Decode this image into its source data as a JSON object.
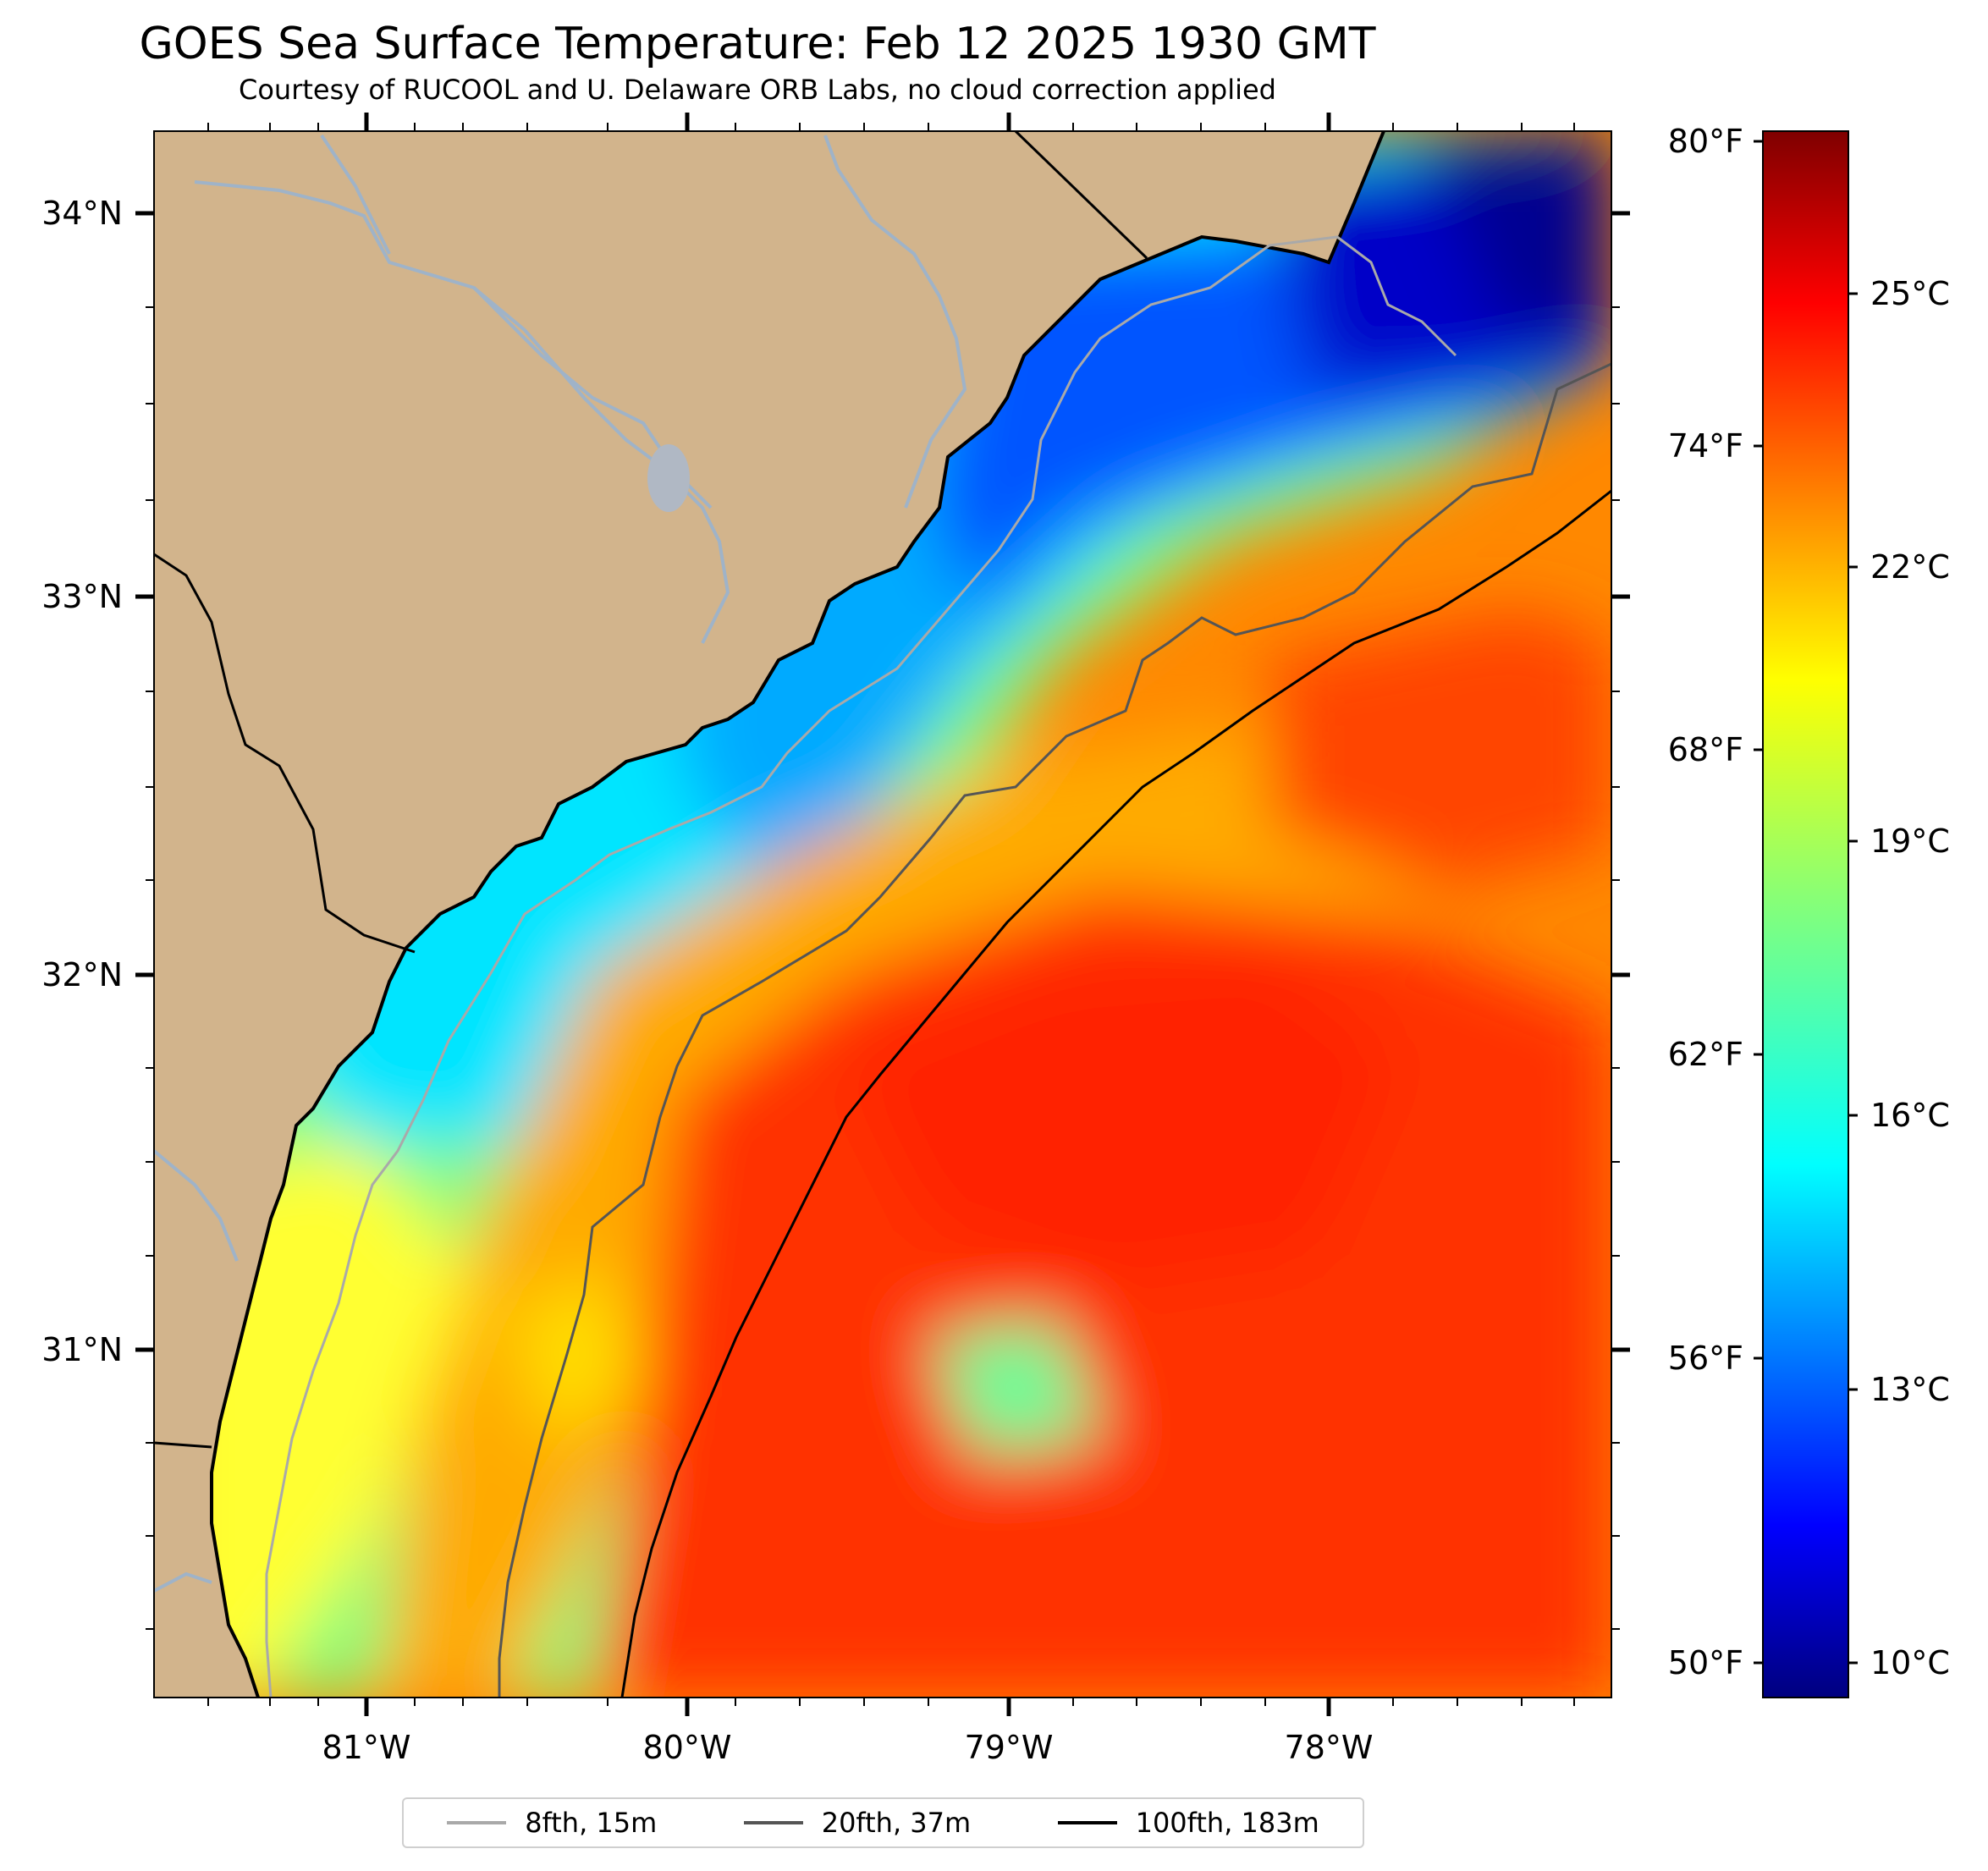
{
  "header": {
    "title": "GOES Sea Surface Temperature: Feb 12 2025 1930 GMT",
    "subtitle": "Courtesy of RUCOOL and U. Delaware ORB Labs, no cloud correction applied"
  },
  "map": {
    "land_color": "#d2b48c",
    "coast_color": "#000000",
    "river_color": "#9fb3c8",
    "lat_labels": [
      "34°N",
      "33°N",
      "32°N",
      "31°N"
    ],
    "lon_labels": [
      "81°W",
      "80°W",
      "79°W",
      "78°W"
    ]
  },
  "colorbar": {
    "fahrenheit_labels": [
      "80°F",
      "74°F",
      "68°F",
      "62°F",
      "56°F",
      "50°F"
    ],
    "celsius_labels": [
      "25°C",
      "22°C",
      "19°C",
      "16°C",
      "13°C",
      "10°C"
    ],
    "colormap": "jet",
    "range_c": [
      9.5,
      26.8
    ]
  },
  "legend": {
    "items": [
      {
        "label": "8fth, 15m",
        "color": "#a9a9a9"
      },
      {
        "label": "20fth, 37m",
        "color": "#555555"
      },
      {
        "label": "100fth, 183m",
        "color": "#000000"
      }
    ]
  }
}
